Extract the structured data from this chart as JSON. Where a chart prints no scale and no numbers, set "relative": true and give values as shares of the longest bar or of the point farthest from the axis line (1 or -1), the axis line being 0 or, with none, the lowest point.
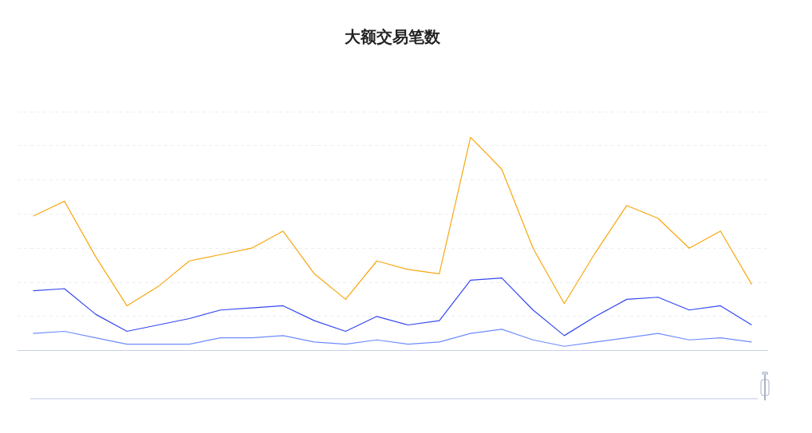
{
  "chart_data": {
    "type": "line",
    "title": "大额交易笔数",
    "relative": true,
    "grid": "y",
    "legend": false,
    "marker": "none",
    "line_style": "solid",
    "categories": [
      null,
      null,
      null,
      null,
      null,
      null,
      null,
      null,
      null,
      null,
      null,
      null,
      null,
      null,
      null,
      null,
      null,
      null,
      null,
      null,
      null,
      null,
      null,
      null
    ],
    "series": [
      {
        "color": "#f7a70f",
        "values": [
          0.63,
          0.7,
          0.44,
          0.21,
          0.3,
          0.42,
          0.45,
          0.48,
          0.56,
          0.36,
          0.24,
          0.42,
          0.38,
          0.36,
          1,
          0.85,
          0.48,
          0.22,
          0.46,
          0.68,
          0.62,
          0.48,
          0.56,
          0.31
        ]
      },
      {
        "color": "#3448f0",
        "values": [
          0.28,
          0.29,
          0.17,
          0.09,
          0.12,
          0.15,
          0.19,
          0.2,
          0.21,
          0.14,
          0.09,
          0.16,
          0.12,
          0.14,
          0.33,
          0.34,
          0.19,
          0.07,
          0.16,
          0.24,
          0.25,
          0.19,
          0.21,
          0.12
        ]
      },
      {
        "color": "#6f8cff",
        "values": [
          0.08,
          0.09,
          0.06,
          0.03,
          0.03,
          0.03,
          0.06,
          0.06,
          0.07,
          0.04,
          0.03,
          0.05,
          0.03,
          0.04,
          0.08,
          0.1,
          0.05,
          0.02,
          0.04,
          0.06,
          0.08,
          0.05,
          0.06,
          0.04
        ]
      }
    ]
  }
}
